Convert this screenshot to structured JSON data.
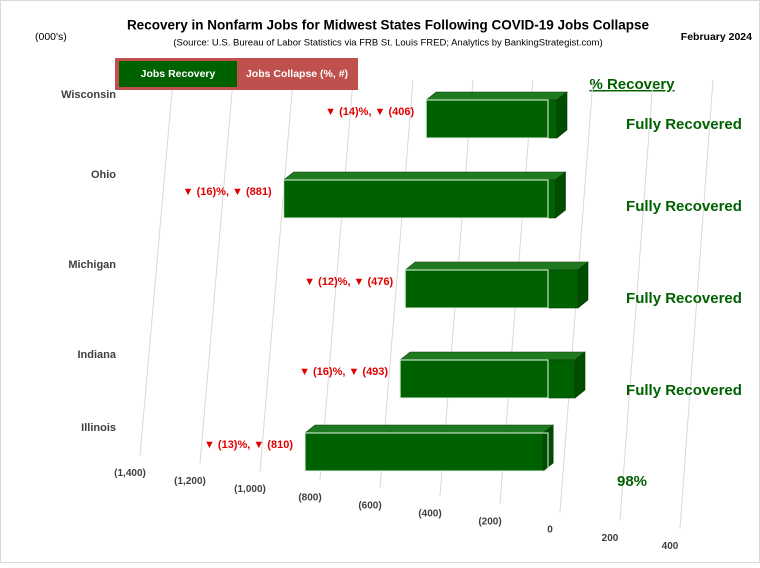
{
  "chart_data": {
    "type": "bar3d",
    "title": "Recovery in Nonfarm Jobs for Midwest States Following COVID-19 Jobs Collapse",
    "subtitle": "(Source: U.S. Bureau of Labor Statistics via FRB St. Louis FRED; Analytics by BankingStrategist.com)",
    "unit_label": "(000's)",
    "date_label": "February 2024",
    "recovery_header": "% Recovery",
    "categories": [
      "Wisconsin",
      "Ohio",
      "Michigan",
      "Indiana",
      "Illinois"
    ],
    "series": [
      {
        "name": "Jobs Recovery",
        "color": "#006100",
        "values": [
          436,
          906,
          576,
          583,
          794
        ]
      },
      {
        "name": "Jobs Collapse (%, #)",
        "color": "#c0504d",
        "values": [
          -406,
          -881,
          -476,
          -493,
          -810
        ],
        "value_labels": [
          "▼ (14)%, ▼ (406)",
          "▼ (16)%, ▼ (881)",
          "▼ (12)%, ▼ (476)",
          "▼ (16)%, ▼ (493)",
          "▼ (13)%, ▼ (810)"
        ]
      }
    ],
    "recovery_labels": [
      "Fully Recovered",
      "Fully Recovered",
      "Fully Recovered",
      "Fully Recovered",
      "98%"
    ],
    "xlim": [
      -1400,
      400
    ],
    "xticks": [
      {
        "value": -1400,
        "label": "(1,400)"
      },
      {
        "value": -1200,
        "label": "(1,200)"
      },
      {
        "value": -1000,
        "label": "(1,000)"
      },
      {
        "value": -800,
        "label": "(800)"
      },
      {
        "value": -600,
        "label": "(600)"
      },
      {
        "value": -400,
        "label": "(400)"
      },
      {
        "value": -200,
        "label": "(200)"
      },
      0,
      200,
      400
    ],
    "grid": true
  }
}
